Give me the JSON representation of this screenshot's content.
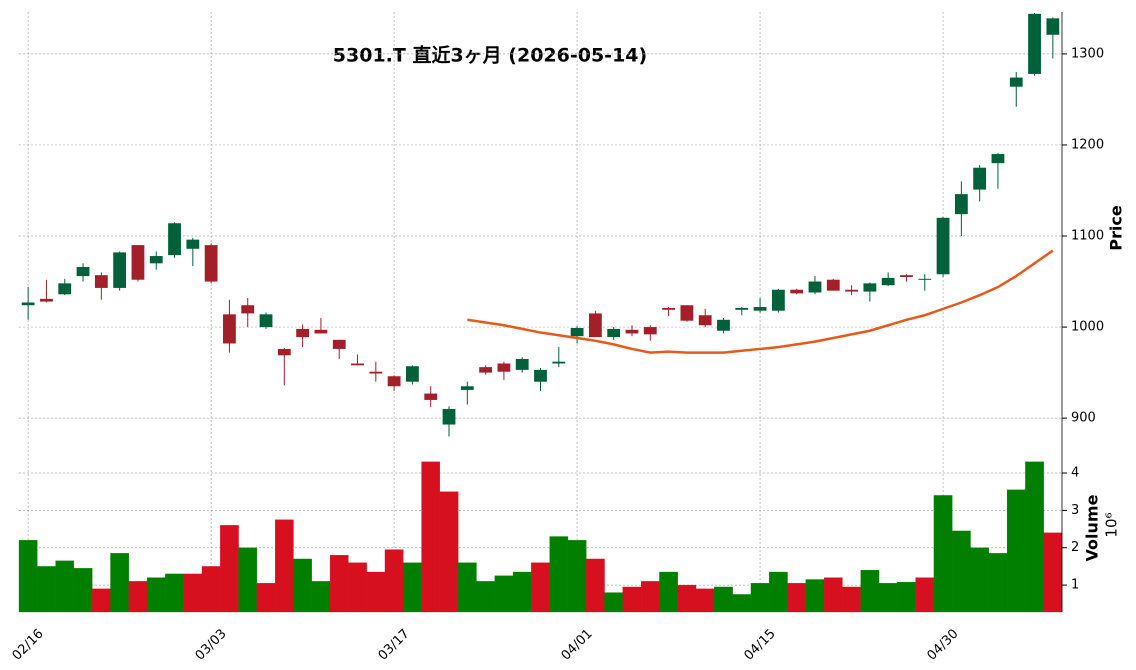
{
  "chart_data": [
    {
      "type": "candlestick",
      "title": "5301.T  直近3ヶ月  (2026-05-14)",
      "ylabel": "Price",
      "categories": [
        "02/16",
        null,
        null,
        null,
        null,
        null,
        null,
        null,
        null,
        null,
        "03/03",
        null,
        null,
        null,
        null,
        null,
        null,
        null,
        null,
        null,
        "03/17",
        null,
        null,
        null,
        null,
        null,
        null,
        null,
        null,
        null,
        "04/01",
        null,
        null,
        null,
        null,
        null,
        null,
        null,
        null,
        null,
        "04/15",
        null,
        null,
        null,
        null,
        null,
        null,
        null,
        null,
        null,
        "04/30",
        null,
        null,
        null,
        null,
        null,
        null
      ],
      "open": [
        1024,
        1031,
        1036,
        1056,
        1057,
        1043,
        1090,
        1070,
        1079,
        1086,
        1090,
        1014,
        1024,
        1000,
        976,
        998,
        997,
        986,
        960,
        951,
        946,
        940,
        927,
        893,
        931,
        956,
        960,
        953,
        940,
        960,
        990,
        1015,
        989,
        997,
        1000,
        1021,
        1024,
        1013,
        996,
        1019,
        1018,
        1018,
        1041,
        1038,
        1052,
        1041,
        1039,
        1046,
        1057,
        1052,
        1058,
        1124,
        1151,
        1180,
        1264,
        1278,
        1321
      ],
      "high": [
        1044,
        1052,
        1053,
        1070,
        1060,
        1083,
        1090,
        1083,
        1115,
        1098,
        1092,
        1030,
        1032,
        1016,
        977,
        1003,
        1010,
        986,
        970,
        962,
        947,
        958,
        935,
        913,
        940,
        958,
        962,
        967,
        955,
        978,
        1001,
        1018,
        1000,
        1002,
        1002,
        1022,
        1024,
        1020,
        1010,
        1022,
        1032,
        1042,
        1042,
        1056,
        1053,
        1046,
        1049,
        1060,
        1058,
        1058,
        1121,
        1160,
        1178,
        1191,
        1280,
        1345,
        1340
      ],
      "low": [
        1008,
        1027,
        1035,
        1050,
        1030,
        1040,
        1050,
        1063,
        1076,
        1067,
        1048,
        972,
        1000,
        998,
        936,
        978,
        993,
        965,
        958,
        940,
        930,
        937,
        912,
        880,
        915,
        948,
        942,
        950,
        930,
        956,
        982,
        989,
        986,
        990,
        985,
        1012,
        1006,
        1000,
        993,
        1013,
        1016,
        1016,
        1036,
        1036,
        1040,
        1035,
        1028,
        1045,
        1050,
        1040,
        1055,
        1100,
        1138,
        1152,
        1242,
        1276,
        1295
      ],
      "close": [
        1027,
        1028,
        1048,
        1066,
        1043,
        1082,
        1052,
        1078,
        1114,
        1096,
        1050,
        982,
        1015,
        1014,
        969,
        989,
        993,
        976,
        958,
        949,
        935,
        957,
        920,
        910,
        935,
        950,
        951,
        965,
        953,
        962,
        999,
        989,
        998,
        993,
        992,
        1019,
        1007,
        1002,
        1008,
        1021,
        1022,
        1041,
        1037,
        1050,
        1040,
        1039,
        1048,
        1054,
        1055,
        1053,
        1120,
        1146,
        1175,
        1190,
        1274,
        1344,
        1339
      ],
      "mav": [
        null,
        null,
        null,
        null,
        null,
        null,
        null,
        null,
        null,
        null,
        null,
        null,
        null,
        null,
        null,
        null,
        null,
        null,
        null,
        null,
        null,
        null,
        null,
        null,
        1008,
        1005,
        1002,
        998,
        994,
        991,
        988,
        985,
        981,
        976,
        972,
        973,
        972,
        972,
        972,
        974,
        976,
        978,
        981,
        984,
        988,
        992,
        996,
        1002,
        1008,
        1013,
        1020,
        1027,
        1035,
        1044,
        1056,
        1070,
        1084
      ],
      "up_color": "#00613a",
      "down_color": "#a3202a",
      "mav_color": "#e8591a",
      "ylim": [
        876,
        1346
      ],
      "yticks": [
        900,
        1000,
        1100,
        1200,
        1300
      ],
      "grid": true
    },
    {
      "type": "bar",
      "ylabel": "Volume",
      "scale_label": "10⁶",
      "values": [
        2.2,
        1.5,
        1.65,
        1.45,
        0.9,
        1.85,
        1.1,
        1.2,
        1.3,
        1.3,
        1.5,
        2.6,
        2.0,
        1.05,
        2.75,
        1.7,
        1.1,
        1.8,
        1.6,
        1.35,
        1.95,
        1.6,
        4.3,
        3.5,
        1.6,
        1.1,
        1.25,
        1.35,
        1.6,
        2.3,
        2.2,
        1.7,
        0.8,
        0.95,
        1.1,
        1.35,
        1.0,
        0.9,
        0.95,
        0.75,
        1.05,
        1.35,
        1.05,
        1.15,
        1.2,
        0.95,
        1.4,
        1.05,
        1.08,
        1.2,
        3.4,
        2.45,
        2.0,
        1.85,
        3.55,
        4.3,
        2.4
      ],
      "up_color": "#007f00",
      "down_color": "#d6101f",
      "ylim": [
        0.28,
        4.83
      ],
      "yticks": [
        1,
        2,
        3,
        4
      ],
      "grid": true
    }
  ]
}
